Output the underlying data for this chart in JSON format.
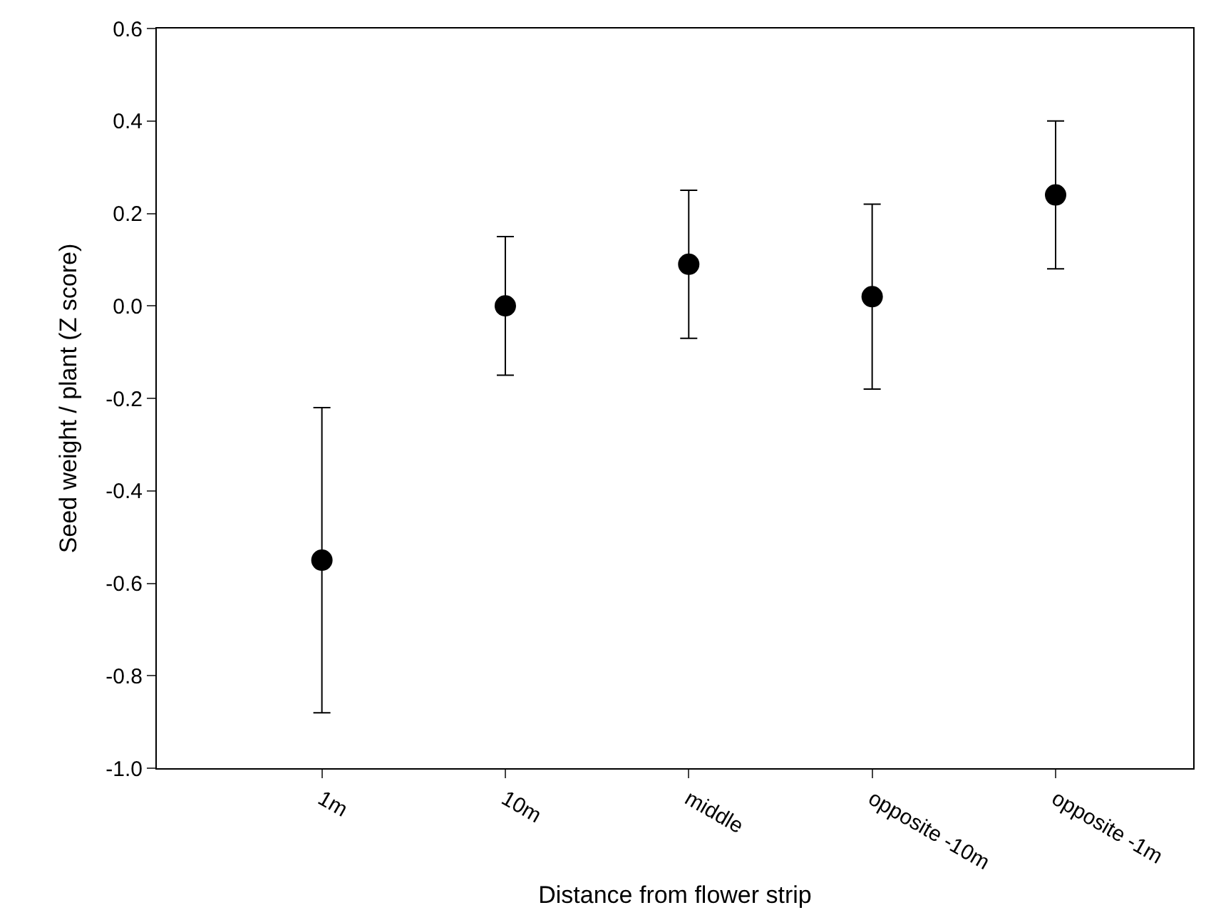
{
  "chart_data": {
    "type": "scatter",
    "xlabel": "Distance from flower strip",
    "ylabel": "Seed weight / plant (Z score)",
    "categories": [
      "1m",
      "10m",
      "middle",
      "opposite -10m",
      "opposite -1m"
    ],
    "series": [
      {
        "color": "#000000",
        "values": [
          -0.55,
          0.0,
          0.09,
          0.02,
          0.24
        ],
        "errors": [
          0.33,
          0.15,
          0.16,
          0.2,
          0.16
        ]
      }
    ],
    "ylim": [
      -1.0,
      0.6
    ],
    "yticks": [
      {
        "value": -1.0,
        "label": "-1.0"
      },
      {
        "value": -0.8,
        "label": "-0.8"
      },
      {
        "value": -0.6,
        "label": "-0.6"
      },
      {
        "value": -0.4,
        "label": "-0.4"
      },
      {
        "value": -0.2,
        "label": "-0.2"
      },
      {
        "value": 0.0,
        "label": "0.0"
      },
      {
        "value": 0.2,
        "label": "0.2"
      },
      {
        "value": 0.4,
        "label": "0.4"
      },
      {
        "value": 0.6,
        "label": "0.6"
      }
    ],
    "marker": "circle"
  }
}
